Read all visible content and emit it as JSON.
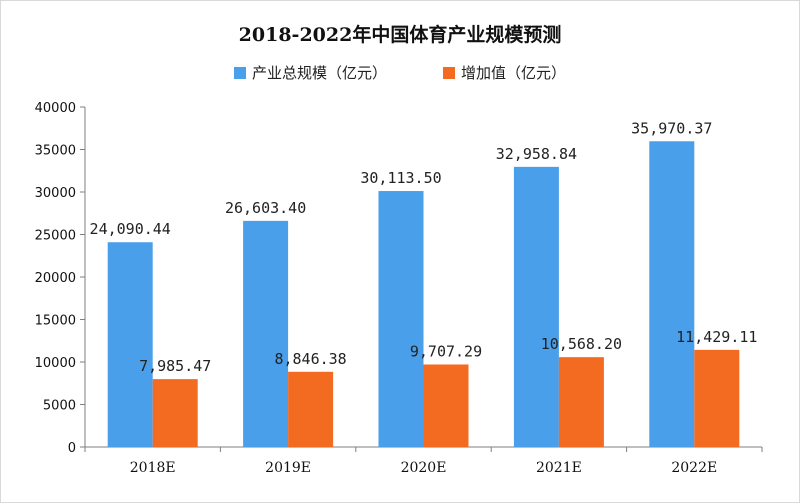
{
  "chart_data": {
    "type": "bar",
    "title": "2018-2022年中国体育产业规模预测",
    "xlabel": "",
    "ylabel": "",
    "categories": [
      "2018E",
      "2019E",
      "2020E",
      "2021E",
      "2022E"
    ],
    "ylim": [
      0,
      40000
    ],
    "yticks": [
      "0",
      "5000",
      "10000",
      "15000",
      "20000",
      "25000",
      "30000",
      "35000",
      "40000"
    ],
    "legend_position": "top-center",
    "grid": false,
    "series": [
      {
        "name": "产业总规模（亿元）",
        "color": "#4a9fea",
        "values": [
          24090.44,
          26603.4,
          30113.5,
          32958.84,
          35970.37
        ],
        "labels": [
          "24,090.44",
          "26,603.40",
          "30,113.50",
          "32,958.84",
          "35,970.37"
        ]
      },
      {
        "name": "增加值（亿元）",
        "color": "#f26b21",
        "values": [
          7985.47,
          8846.38,
          9707.29,
          10568.2,
          11429.11
        ],
        "labels": [
          "7,985.47",
          "8,846.38",
          "9,707.29",
          "10,568.20",
          "11,429.11"
        ]
      }
    ]
  }
}
